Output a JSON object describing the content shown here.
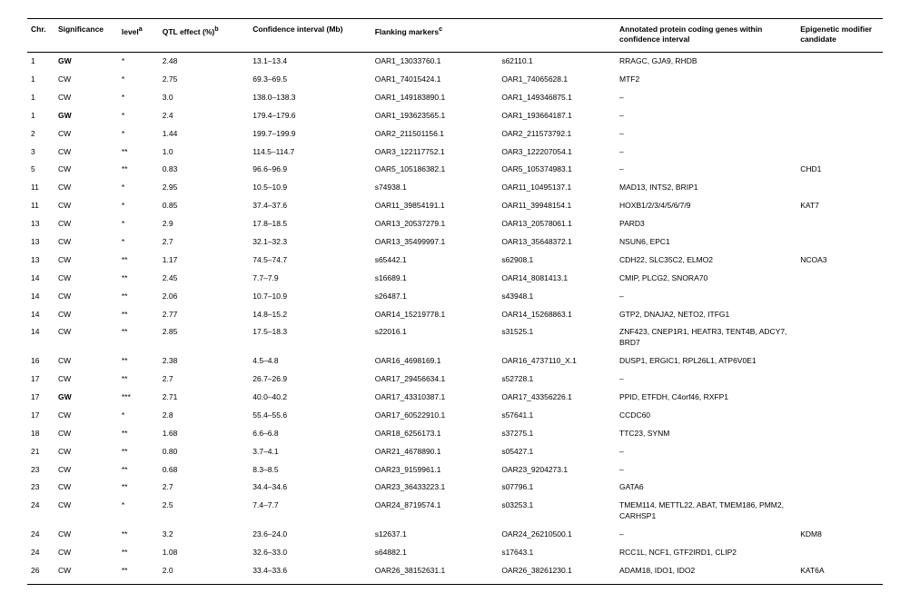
{
  "columns": [
    {
      "key": "chr",
      "label": "Chr.",
      "class": "col-chr"
    },
    {
      "key": "sig",
      "label": "Significance",
      "class": "col-sig"
    },
    {
      "key": "lvl",
      "label": "level",
      "sup": "a",
      "class": "col-lvl"
    },
    {
      "key": "eff",
      "label": "QTL effect (%)",
      "sup": "b",
      "class": "col-eff"
    },
    {
      "key": "ci",
      "label": "Confidence interval (Mb)",
      "class": "col-ci"
    },
    {
      "key": "fm1",
      "label": "Flanking markers",
      "sup": "c",
      "class": "col-fm1"
    },
    {
      "key": "fm2",
      "label": "",
      "class": "col-fm2"
    },
    {
      "key": "genes",
      "label": "Annotated protein coding genes within confidence interval",
      "class": "col-genes"
    },
    {
      "key": "epi",
      "label": "Epigenetic modifier candidate",
      "class": "col-epi"
    }
  ],
  "rows": [
    {
      "chr": "1",
      "sig": "GW",
      "sig_bold": true,
      "lvl": "*",
      "eff": "2.48",
      "ci": "13.1–13.4",
      "fm1": "OAR1_13033760.1",
      "fm2": "s62110.1",
      "genes": "RRAGC, GJA9, RHDB",
      "epi": ""
    },
    {
      "chr": "1",
      "sig": "CW",
      "lvl": "*",
      "eff": "2.75",
      "ci": "69.3–69.5",
      "fm1": "OAR1_74015424.1",
      "fm2": "OAR1_74065628.1",
      "genes": "MTF2",
      "epi": ""
    },
    {
      "chr": "1",
      "sig": "CW",
      "lvl": "*",
      "eff": "3.0",
      "ci": "138.0–138.3",
      "fm1": "OAR1_149183890.1",
      "fm2": "OAR1_149346875.1",
      "genes": "–",
      "epi": ""
    },
    {
      "chr": "1",
      "sig": "GW",
      "sig_bold": true,
      "lvl": "*",
      "eff": "2.4",
      "ci": "179.4–179.6",
      "fm1": "OAR1_193623565.1",
      "fm2": "OAR1_193664187.1",
      "genes": "–",
      "epi": ""
    },
    {
      "chr": "2",
      "sig": "CW",
      "lvl": "*",
      "eff": "1.44",
      "ci": "199.7–199.9",
      "fm1": "OAR2_211501156.1",
      "fm2": "OAR2_211573792.1",
      "genes": "–",
      "epi": ""
    },
    {
      "chr": "3",
      "sig": "CW",
      "lvl": "**",
      "eff": "1.0",
      "ci": "114.5–114.7",
      "fm1": "OAR3_122117752.1",
      "fm2": "OAR3_122207054.1",
      "genes": "–",
      "epi": ""
    },
    {
      "chr": "5",
      "sig": "CW",
      "lvl": "**",
      "eff": "0.83",
      "ci": "96.6–96.9",
      "fm1": "OAR5_105186382.1",
      "fm2": "OAR5_105374983.1",
      "genes": "–",
      "epi": "CHD1"
    },
    {
      "chr": "11",
      "sig": "CW",
      "lvl": "*",
      "eff": "2.95",
      "ci": "10.5–10.9",
      "fm1": "s74938.1",
      "fm2": "OAR11_10495137.1",
      "genes": "MAD13, INTS2, BRIP1",
      "epi": ""
    },
    {
      "chr": "11",
      "sig": "CW",
      "lvl": "*",
      "eff": "0.85",
      "ci": "37.4–37.6",
      "fm1": "OAR11_39854191.1",
      "fm2": "OAR11_39948154.1",
      "genes": "HOXB1/2/3/4/5/6/7/9",
      "epi": "KAT7"
    },
    {
      "chr": "13",
      "sig": "CW",
      "lvl": "*",
      "eff": "2.9",
      "ci": "17.8–18.5",
      "fm1": "OAR13_20537279.1",
      "fm2": "OAR13_20578061.1",
      "genes": "PARD3",
      "epi": ""
    },
    {
      "chr": "13",
      "sig": "CW",
      "lvl": "*",
      "eff": "2.7",
      "ci": "32.1–32.3",
      "fm1": "OAR13_35499997.1",
      "fm2": "OAR13_35648372.1",
      "genes": "NSUN6, EPC1",
      "epi": ""
    },
    {
      "chr": "13",
      "sig": "CW",
      "lvl": "**",
      "eff": "1.17",
      "ci": "74.5–74.7",
      "fm1": "s65442.1",
      "fm2": "s62908.1",
      "genes": "CDH22, SLC35C2, ELMO2",
      "epi": "NCOA3"
    },
    {
      "chr": "14",
      "sig": "CW",
      "lvl": "**",
      "eff": "2.45",
      "ci": "7.7–7.9",
      "fm1": "s16689.1",
      "fm2": "OAR14_8081413.1",
      "genes": "CMIP, PLCG2, SNORA70",
      "epi": ""
    },
    {
      "chr": "14",
      "sig": "CW",
      "lvl": "**",
      "eff": "2.06",
      "ci": "10.7–10.9",
      "fm1": "s26487.1",
      "fm2": "s43948.1",
      "genes": "–",
      "epi": ""
    },
    {
      "chr": "14",
      "sig": "CW",
      "lvl": "**",
      "eff": "2.77",
      "ci": "14.8–15.2",
      "fm1": "OAR14_15219778.1",
      "fm2": "OAR14_15268863.1",
      "genes": "GTP2, DNAJA2, NETO2, ITFG1",
      "epi": ""
    },
    {
      "chr": "14",
      "sig": "CW",
      "lvl": "**",
      "eff": "2.85",
      "ci": "17.5–18.3",
      "fm1": "s22016.1",
      "fm2": "s31525.1",
      "genes": "ZNF423, CNEP1R1, HEATR3, TENT4B, ADCY7, BRD7",
      "epi": ""
    },
    {
      "chr": "16",
      "sig": "CW",
      "lvl": "**",
      "eff": "2.38",
      "ci": "4.5–4.8",
      "fm1": "OAR16_4698169.1",
      "fm2": "OAR16_4737110_X.1",
      "genes": "DUSP1, ERGIC1, RPL26L1, ATP6V0E1",
      "epi": ""
    },
    {
      "chr": "17",
      "sig": "CW",
      "lvl": "**",
      "eff": "2.7",
      "ci": "26.7–26.9",
      "fm1": "OAR17_29456634.1",
      "fm2": "s52728.1",
      "genes": "–",
      "epi": ""
    },
    {
      "chr": "17",
      "sig": "GW",
      "sig_bold": true,
      "lvl": "***",
      "eff": "2.71",
      "ci": "40.0–40.2",
      "fm1": "OAR17_43310387.1",
      "fm2": "OAR17_43356226.1",
      "genes": "PPID, ETFDH, C4orf46, RXFP1",
      "epi": ""
    },
    {
      "chr": "17",
      "sig": "CW",
      "lvl": "*",
      "eff": "2.8",
      "ci": "55.4–55.6",
      "fm1": "OAR17_60522910.1",
      "fm2": "s57641.1",
      "genes": "CCDC60",
      "epi": ""
    },
    {
      "chr": "18",
      "sig": "CW",
      "lvl": "**",
      "eff": "1.68",
      "ci": "6.6–6.8",
      "fm1": "OAR18_6256173.1",
      "fm2": "s37275.1",
      "genes": "TTC23, SYNM",
      "epi": ""
    },
    {
      "chr": "21",
      "sig": "CW",
      "lvl": "**",
      "eff": "0.80",
      "ci": "3.7–4.1",
      "fm1": "OAR21_4678890.1",
      "fm2": "s05427.1",
      "genes": "–",
      "epi": ""
    },
    {
      "chr": "23",
      "sig": "CW",
      "lvl": "**",
      "eff": "0.68",
      "ci": "8.3–8.5",
      "fm1": "OAR23_9159961.1",
      "fm2": "OAR23_9204273.1",
      "genes": "–",
      "epi": ""
    },
    {
      "chr": "23",
      "sig": "CW",
      "lvl": "**",
      "eff": "2.7",
      "ci": "34.4–34.6",
      "fm1": "OAR23_36433223.1",
      "fm2": "s07796.1",
      "genes": "GATA6",
      "epi": ""
    },
    {
      "chr": "24",
      "sig": "CW",
      "lvl": "*",
      "eff": "2.5",
      "ci": "7.4–7.7",
      "fm1": "OAR24_8719574.1",
      "fm2": "s03253.1",
      "genes": "TMEM114, METTL22, ABAT, TMEM186, PMM2, CARHSP1",
      "epi": ""
    },
    {
      "chr": "24",
      "sig": "CW",
      "lvl": "**",
      "eff": "3.2",
      "ci": "23.6–24.0",
      "fm1": "s12637.1",
      "fm2": "OAR24_26210500.1",
      "genes": "–",
      "epi": "KDM8"
    },
    {
      "chr": "24",
      "sig": "CW",
      "lvl": "**",
      "eff": "1.08",
      "ci": "32.6–33.0",
      "fm1": "s64882.1",
      "fm2": "s17643.1",
      "genes": "RCC1L, NCF1, GTF2IRD1, CLIP2",
      "epi": ""
    },
    {
      "chr": "26",
      "sig": "CW",
      "lvl": "**",
      "eff": "2.0",
      "ci": "33.4–33.6",
      "fm1": "OAR26_38152631.1",
      "fm2": "OAR26_38261230.1",
      "genes": "ADAM18, IDO1, IDO2",
      "epi": "KAT6A"
    }
  ]
}
